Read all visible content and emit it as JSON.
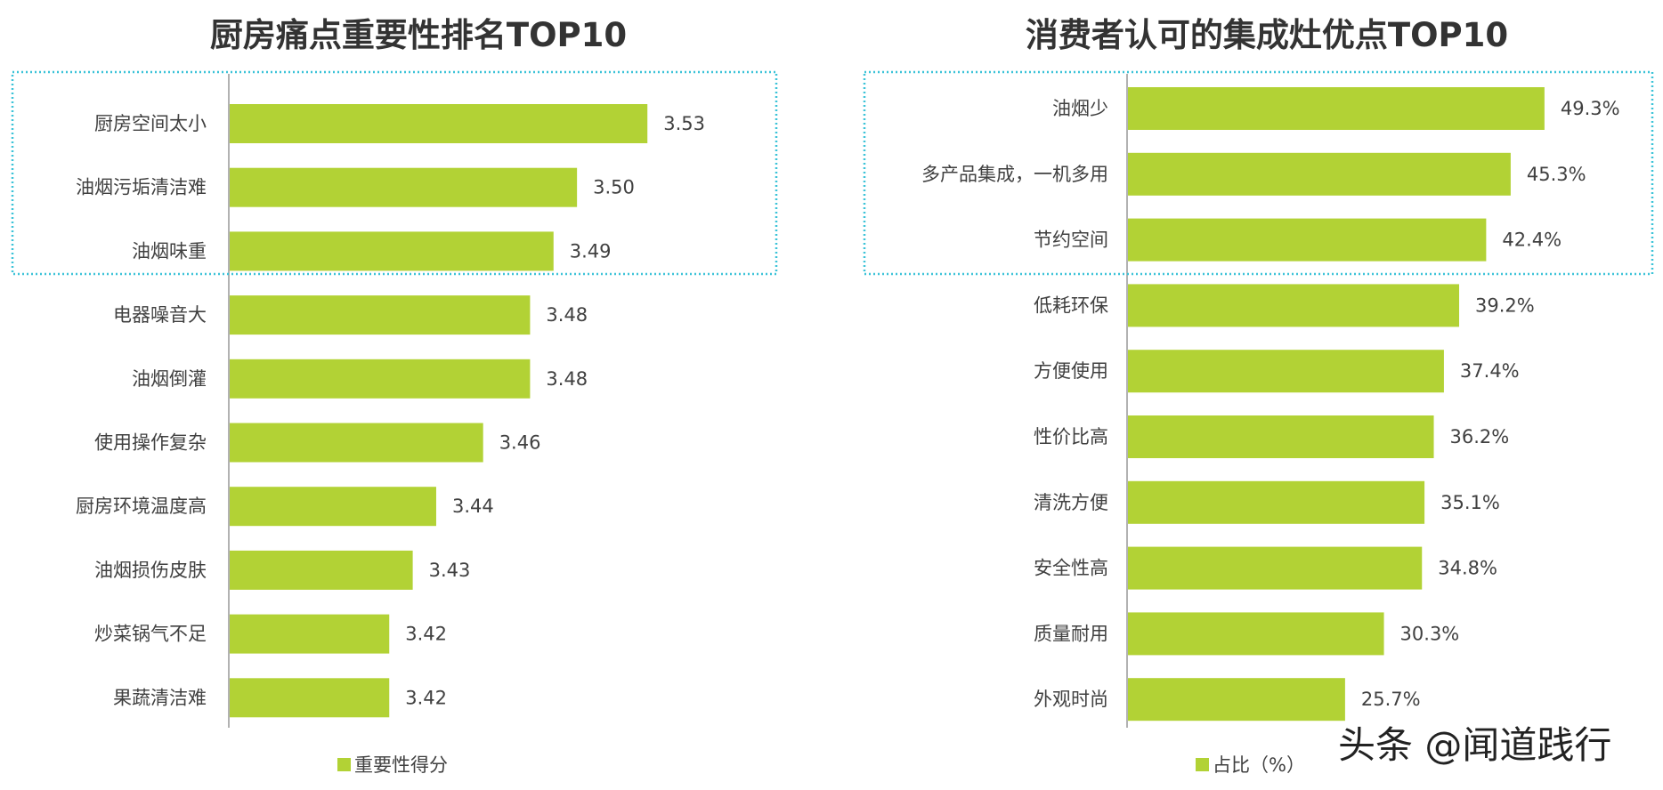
{
  "chart_data": [
    {
      "type": "bar",
      "orientation": "horizontal",
      "title": "厨房痛点重要性排名TOP10",
      "categories": [
        "厨房空间太小",
        "油烟污垢清洁难",
        "油烟味重",
        "电器噪音大",
        "油烟倒灌",
        "使用操作复杂",
        "厨房环境温度高",
        "油烟损伤皮肤",
        "炒菜锅气不足",
        "果蔬清洁难"
      ],
      "values": [
        3.53,
        3.5,
        3.49,
        3.48,
        3.48,
        3.46,
        3.44,
        3.43,
        3.42,
        3.42
      ],
      "value_labels": [
        "3.53",
        "3.50",
        "3.49",
        "3.48",
        "3.48",
        "3.46",
        "3.44",
        "3.43",
        "3.42",
        "3.42"
      ],
      "series": [
        {
          "name": "重要性得分"
        }
      ],
      "legend": "bottom",
      "highlight_top": 3,
      "grid": false,
      "color": "#b2d235"
    },
    {
      "type": "bar",
      "orientation": "horizontal",
      "title": "消费者认可的集成灶优点TOP10",
      "categories": [
        "油烟少",
        "多产品集成，一机多用",
        "节约空间",
        "低耗环保",
        "方便使用",
        "性价比高",
        "清洗方便",
        "安全性高",
        "质量耐用",
        "外观时尚"
      ],
      "values": [
        49.3,
        45.3,
        42.4,
        39.2,
        37.4,
        36.2,
        35.1,
        34.8,
        30.3,
        25.7
      ],
      "value_labels": [
        "49.3%",
        "45.3%",
        "42.4%",
        "39.2%",
        "37.4%",
        "36.2%",
        "35.1%",
        "34.8%",
        "30.3%",
        "25.7%"
      ],
      "series": [
        {
          "name": "占比（%）"
        }
      ],
      "legend": "bottom",
      "highlight_top": 3,
      "grid": false,
      "color": "#b2d235"
    }
  ],
  "highlight_color": "#3cc3d8",
  "watermark": "头条 @闻道践行"
}
